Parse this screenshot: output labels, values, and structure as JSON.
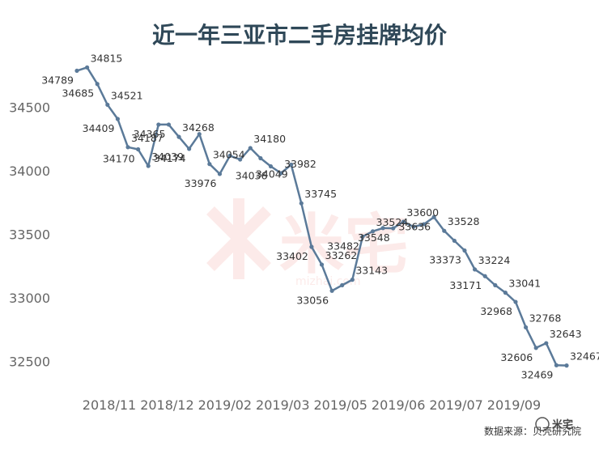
{
  "chart_data": {
    "type": "line",
    "title": "近一年三亚市二手房挂牌均价",
    "xlabel": "",
    "ylabel": "",
    "ylim": [
      32350,
      34900
    ],
    "yticks": [
      32500,
      33000,
      33500,
      34000,
      34500
    ],
    "xtick_labels": [
      "2018/11",
      "2018/12",
      "2019/02",
      "2019/03",
      "2019/05",
      "2019/06",
      "2019/07",
      "2019/09"
    ],
    "grid": false,
    "legend": "none",
    "line_color": "#5b7a99",
    "values": [
      34789,
      34815,
      34685,
      34521,
      34409,
      34187,
      34170,
      34039,
      34365,
      34365,
      34268,
      34174,
      34290,
      34054,
      33976,
      34120,
      34090,
      34180,
      34100,
      34036,
      33982,
      34049,
      33745,
      33402,
      33262,
      33056,
      33100,
      33143,
      33482,
      33524,
      33550,
      33548,
      33600,
      33560,
      33580,
      33636,
      33528,
      33450,
      33373,
      33224,
      33171,
      33100,
      33041,
      32968,
      32768,
      32606,
      32643,
      32469,
      32467
    ],
    "point_labels": [
      {
        "i": 0,
        "text": "34789"
      },
      {
        "i": 1,
        "text": "34815"
      },
      {
        "i": 2,
        "text": "34685"
      },
      {
        "i": 3,
        "text": "34521"
      },
      {
        "i": 4,
        "text": "34409"
      },
      {
        "i": 5,
        "text": "34187"
      },
      {
        "i": 6,
        "text": "34170"
      },
      {
        "i": 7,
        "text": "34039"
      },
      {
        "i": 9,
        "text": "34365"
      },
      {
        "i": 10,
        "text": "34268"
      },
      {
        "i": 11,
        "text": "34174"
      },
      {
        "i": 13,
        "text": "34054"
      },
      {
        "i": 14,
        "text": "33976"
      },
      {
        "i": 17,
        "text": "34180"
      },
      {
        "i": 19,
        "text": "34036"
      },
      {
        "i": 20,
        "text": "33982"
      },
      {
        "i": 21,
        "text": "34049"
      },
      {
        "i": 22,
        "text": "33745"
      },
      {
        "i": 23,
        "text": "33402"
      },
      {
        "i": 24,
        "text": "33262"
      },
      {
        "i": 25,
        "text": "33056"
      },
      {
        "i": 27,
        "text": "33143"
      },
      {
        "i": 28,
        "text": "33482"
      },
      {
        "i": 29,
        "text": "33524"
      },
      {
        "i": 31,
        "text": "33548"
      },
      {
        "i": 32,
        "text": "33600"
      },
      {
        "i": 35,
        "text": "33636"
      },
      {
        "i": 36,
        "text": "33528"
      },
      {
        "i": 38,
        "text": "33373"
      },
      {
        "i": 39,
        "text": "33224"
      },
      {
        "i": 40,
        "text": "33171"
      },
      {
        "i": 42,
        "text": "33041"
      },
      {
        "i": 43,
        "text": "32968"
      },
      {
        "i": 44,
        "text": "32768"
      },
      {
        "i": 45,
        "text": "32606"
      },
      {
        "i": 46,
        "text": "32643"
      },
      {
        "i": 47,
        "text": "32469"
      },
      {
        "i": 48,
        "text": "32467"
      }
    ]
  },
  "source_note": "数据来源：贝壳研究院",
  "watermark": {
    "brand_text": "米宅",
    "site_text": "mizhai.com",
    "logo_text": "米宅",
    "brand_color": "#e85a4f"
  }
}
